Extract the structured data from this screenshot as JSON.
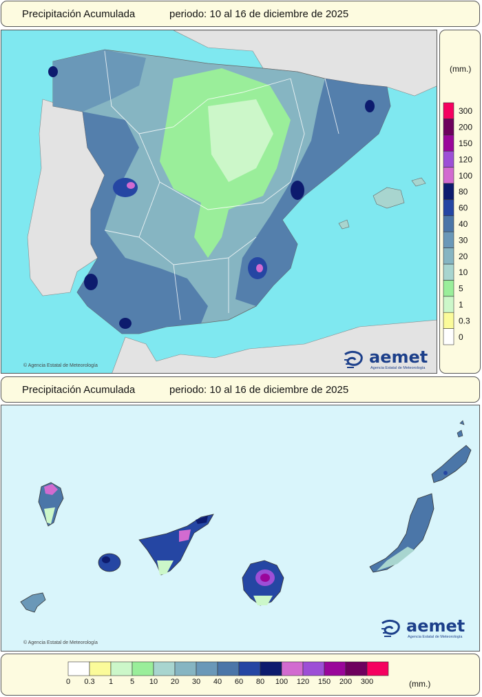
{
  "top_panel": {
    "title": "Precipitación Acumulada",
    "period": "periodo: 10 al 16 de diciembre de 2025",
    "credit": "© Agencia Estatal de Meteorología"
  },
  "bottom_panel": {
    "title": "Precipitación Acumulada",
    "period": "periodo: 10 al 16 de diciembre de 2025",
    "credit": "© Agencia Estatal de Meteorología"
  },
  "logo": {
    "text": "aemet",
    "subtitle": "Agencia Estatal de Meteorología"
  },
  "legend": {
    "unit": "(mm.)",
    "levels": [
      {
        "label": "0",
        "color": "#ffffff"
      },
      {
        "label": "0.3",
        "color": "#fbfb9a"
      },
      {
        "label": "1",
        "color": "#ccf7c9"
      },
      {
        "label": "5",
        "color": "#9aee9a"
      },
      {
        "label": "10",
        "color": "#a8d5cf"
      },
      {
        "label": "20",
        "color": "#86b5c2"
      },
      {
        "label": "30",
        "color": "#6a98b8"
      },
      {
        "label": "40",
        "color": "#4b76a8"
      },
      {
        "label": "60",
        "color": "#2546a3"
      },
      {
        "label": "80",
        "color": "#0d1b6e"
      },
      {
        "label": "100",
        "color": "#d26bd0"
      },
      {
        "label": "120",
        "color": "#9d4fd6"
      },
      {
        "label": "150",
        "color": "#9a069a"
      },
      {
        "label": "200",
        "color": "#6e005e"
      },
      {
        "label": "300",
        "color": "#f5005f"
      }
    ]
  },
  "colors": {
    "sea": "#7fe8f0",
    "land_other": "#e3e3e3",
    "canary_sea": "#d9f5fb",
    "frame_bg": "#fdfbe0"
  }
}
